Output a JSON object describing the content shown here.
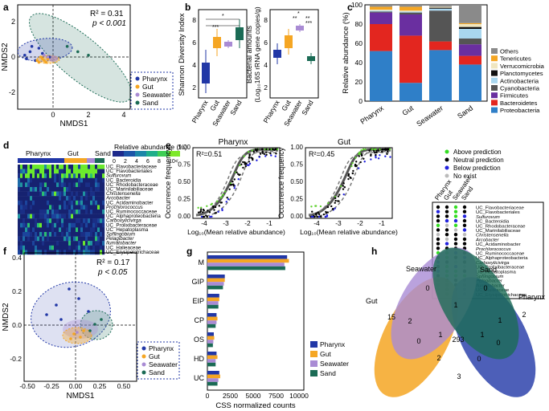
{
  "panels": {
    "a": {
      "label": "a",
      "stats": [
        "R² = 0.31",
        "p < 0.001"
      ],
      "xlabel": "NMDS1",
      "ylabel": "NMDS2",
      "xticks": [
        "0",
        "2",
        "4"
      ],
      "yticks": [
        "2",
        "0",
        "-2"
      ],
      "legend": [
        "Pharynx",
        "Gut",
        "Seawater",
        "Sand"
      ]
    },
    "b": {
      "label": "b",
      "left_ylabel": "Shannon Diversity Index",
      "left_yticks": [
        "2",
        "4",
        "6",
        "8"
      ],
      "right_ylabel_1": "Bacterial amounts",
      "right_ylabel_2": "(Log₁₀16S rRNA gene copies/g)",
      "right_yticks": [
        "2",
        "4",
        "6",
        "8"
      ],
      "categories": [
        "Pharynx",
        "Gut",
        "Seawater",
        "Sand"
      ],
      "sig_left": [
        "***",
        "*"
      ],
      "sig_right": [
        "*",
        "**",
        "**",
        "***"
      ]
    },
    "c": {
      "label": "c",
      "ylabel": "Relative abundance (%)",
      "yticks": [
        "0",
        "20",
        "40",
        "60",
        "80",
        "100"
      ],
      "categories": [
        "Pharynx",
        "Gut",
        "Seawater",
        "Sand"
      ],
      "legend": [
        "Others",
        "Tenericutes",
        "Verrucomicrobia",
        "Planctomycetes",
        "Actinobacteria",
        "Cyanobacteria",
        "Firmicutes",
        "Bacteroidetes",
        "Proteobacteria"
      ]
    },
    "d": {
      "label": "d",
      "title": "Relative abundance (%)",
      "scale_ticks": [
        "0",
        "2",
        "4",
        "6",
        "8",
        "10<"
      ],
      "groups": [
        "Pharynx",
        "Gut",
        "Sand"
      ],
      "taxa": [
        "UC_Flavobacteriaceae",
        "UC_Flavobacteriales",
        "Sulfurovum",
        "UC_Bacteroidia",
        "UC_Rhodobacteraceae",
        "UC_Marinilabiliaceae",
        "Christensenella",
        "Arcobacter",
        "UC_Acidaminobacter",
        "Prochlorococcus",
        "UC_Ruminococcaceae",
        "UC_Alphaproteobacteria",
        "Carboxylicivirga",
        "UC_Prolixibacteraceae",
        "UC_Hepatoplasma",
        "Sphingobium",
        "Pelagibacter",
        "Ilumatobacter",
        "UC_Halieaceae",
        "UC_Erysipelotrichaceae"
      ]
    },
    "e": {
      "label": "e",
      "left_title": "Pharynx",
      "left_stat": "R²=0.51",
      "right_title": "Gut",
      "right_stat": "R²=0.45",
      "ylabel": "Occurrence frequency",
      "xlabel": "Log₁₀(Mean relative abundance)",
      "xticks": [
        "-4",
        "-3",
        "-2",
        "-1"
      ],
      "yticks": [
        "0.00",
        "0.25",
        "0.50",
        "0.75",
        "1.00"
      ],
      "legend": [
        "Above prediction",
        "Neutral prediction",
        "Below prediction",
        "No exist"
      ],
      "dot_columns": [
        "Pharynx",
        "Gut",
        "Seawater",
        "Sand"
      ],
      "taxa": [
        "UC_Flavobacteriaceae",
        "UC_Flavobacteriales",
        "Sulfurovum",
        "UC_Bacteroidia",
        "UC_Rhodobacteraceae",
        "UC_Marinilabiliaceae",
        "Christensenella",
        "Arcobacter",
        "UC_Acidaminobacter",
        "Prochlorococcus",
        "UC_Ruminococcaceae",
        "UC_Alphaproteobacteria",
        "Carboxylicivirga",
        "UC_Prolixibacteraceae",
        "UC_Hepatoplasma",
        "Sphingobium",
        "Pelagibacter",
        "Ilumatobacter",
        "UC_Halieaceae",
        "UC_Erysipelotrichaceae"
      ]
    },
    "f": {
      "label": "f",
      "stats": [
        "R² = 0.17",
        "p < 0.05"
      ],
      "xlabel": "NMDS1",
      "ylabel": "NMDS2",
      "xticks": [
        "-0.50",
        "-0.25",
        "0.00",
        "0.25",
        "0.50"
      ],
      "yticks": [
        "0.4",
        "0.2",
        "0.0",
        "-0.2"
      ],
      "legend": [
        "Pharynx",
        "Gut",
        "Seawater",
        "Sand"
      ]
    },
    "g": {
      "label": "g",
      "xlabel": "CSS normalized counts",
      "xticks": [
        "0",
        "2500",
        "5000",
        "7500",
        "10000"
      ],
      "categories": [
        "M",
        "GIP",
        "EIP",
        "CP",
        "OS",
        "HD",
        "UC"
      ],
      "legend": [
        "Pharynx",
        "Gut",
        "Seawater",
        "Sand"
      ]
    },
    "h": {
      "label": "h",
      "sets": [
        "Seawater",
        "Sand",
        "Gut",
        "Pharynx"
      ],
      "counts": [
        "0",
        "0",
        "15",
        "2",
        "2",
        "1",
        "1",
        "1",
        "1",
        "0",
        "293",
        "0",
        "2",
        "0",
        "3"
      ]
    }
  },
  "chart_data": [
    {
      "type": "scatter",
      "title": "",
      "xlabel": "NMDS1",
      "ylabel": "NMDS2",
      "xlim": [
        -2,
        4.5
      ],
      "ylim": [
        -3,
        3
      ],
      "series": [
        {
          "name": "Pharynx",
          "x": [
            -1.6,
            -1.3,
            -1.0,
            -0.8,
            -1.2,
            -1.5,
            -0.6,
            -0.2
          ],
          "y": [
            0.1,
            0.3,
            -0.2,
            0.5,
            0.6,
            -0.1,
            0.2,
            0.0
          ]
        },
        {
          "name": "Gut",
          "x": [
            -0.9,
            -0.6,
            -0.4,
            -0.7,
            -0.5,
            -0.3,
            -0.8
          ],
          "y": [
            -0.2,
            -0.1,
            -0.3,
            0.0,
            -0.2,
            -0.1,
            -0.3
          ]
        },
        {
          "name": "Seawater",
          "x": [
            -0.5,
            -0.3
          ],
          "y": [
            0.1,
            0.0
          ]
        },
        {
          "name": "Sand",
          "x": [
            0.8,
            1.4,
            2.0
          ],
          "y": [
            0.6,
            0.3,
            0.1
          ]
        }
      ]
    },
    {
      "type": "bar",
      "title": "",
      "categories": [
        "Pharynx",
        "Gut",
        "Seawater",
        "Sand"
      ],
      "ylabel": "Relative abundance (%)",
      "ylim": [
        0,
        100
      ],
      "series": [
        {
          "name": "Proteobacteria",
          "values": [
            52,
            19,
            53,
            38
          ]
        },
        {
          "name": "Bacteroidetes",
          "values": [
            28,
            49,
            9,
            9
          ]
        },
        {
          "name": "Firmicutes",
          "values": [
            12,
            22,
            0,
            12
          ]
        },
        {
          "name": "Cyanobacteria",
          "values": [
            1,
            2,
            32,
            6
          ]
        },
        {
          "name": "Actinobacteria",
          "values": [
            1,
            1,
            2,
            10
          ]
        },
        {
          "name": "Planctomycetes",
          "values": [
            0,
            0,
            1,
            2
          ]
        },
        {
          "name": "Verrucomicrobia",
          "values": [
            1,
            1,
            1,
            3
          ]
        },
        {
          "name": "Tenericutes",
          "values": [
            3,
            4,
            0,
            1
          ]
        },
        {
          "name": "Others",
          "values": [
            2,
            2,
            2,
            19
          ]
        }
      ]
    },
    {
      "type": "bar",
      "title": "",
      "xlabel": "CSS normalized counts",
      "categories": [
        "M",
        "GIP",
        "EIP",
        "CP",
        "OS",
        "HD",
        "UC"
      ],
      "xlim": [
        0,
        10000
      ],
      "series": [
        {
          "name": "Pharynx",
          "values": [
            8700,
            1900,
            1300,
            1000,
            700,
            1000,
            1300
          ]
        },
        {
          "name": "Gut",
          "values": [
            8900,
            1900,
            1300,
            1100,
            750,
            1100,
            1400
          ]
        },
        {
          "name": "Seawater",
          "values": [
            8400,
            1800,
            1200,
            1000,
            650,
            900,
            1200
          ]
        },
        {
          "name": "Sand",
          "values": [
            8500,
            1700,
            1200,
            900,
            600,
            900,
            1100
          ]
        }
      ]
    }
  ],
  "colors": {
    "pharynx": "#2137a6",
    "gut": "#f5a623",
    "seawater": "#a98bd4",
    "sand": "#1b6b55",
    "proteobacteria": "#2f7fc8",
    "bacteroidetes": "#e3261f",
    "firmicutes": "#6a2fa0",
    "cyanobacteria": "#555555",
    "actinobacteria": "#a9d7ef",
    "planctomycetes": "#111111",
    "verrucomicrobia": "#f0e6c0",
    "tenericutes": "#f5a623",
    "others": "#8a8a8a"
  }
}
